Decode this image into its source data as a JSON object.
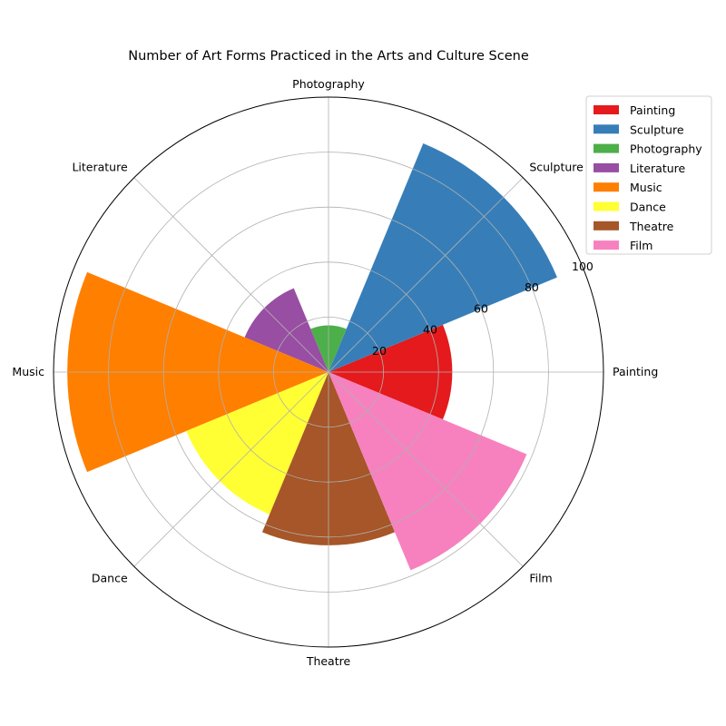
{
  "chart_data": {
    "type": "polar-bar",
    "title": "Number of Art Forms Practiced in the Arts and Culture Scene",
    "categories": [
      "Painting",
      "Sculpture",
      "Photography",
      "Literature",
      "Music",
      "Dance",
      "Theatre",
      "Film"
    ],
    "values": [
      45,
      90,
      17,
      33,
      95,
      56,
      63,
      78
    ],
    "colors": [
      "#e41a1c",
      "#377eb8",
      "#4daf4a",
      "#984ea3",
      "#ff7f00",
      "#ffff33",
      "#a65628",
      "#f781bf"
    ],
    "rlim": [
      0,
      100
    ],
    "rticks": [
      "20",
      "40",
      "60",
      "80",
      "100"
    ],
    "grid": true,
    "legend": "upper-right-outside"
  }
}
